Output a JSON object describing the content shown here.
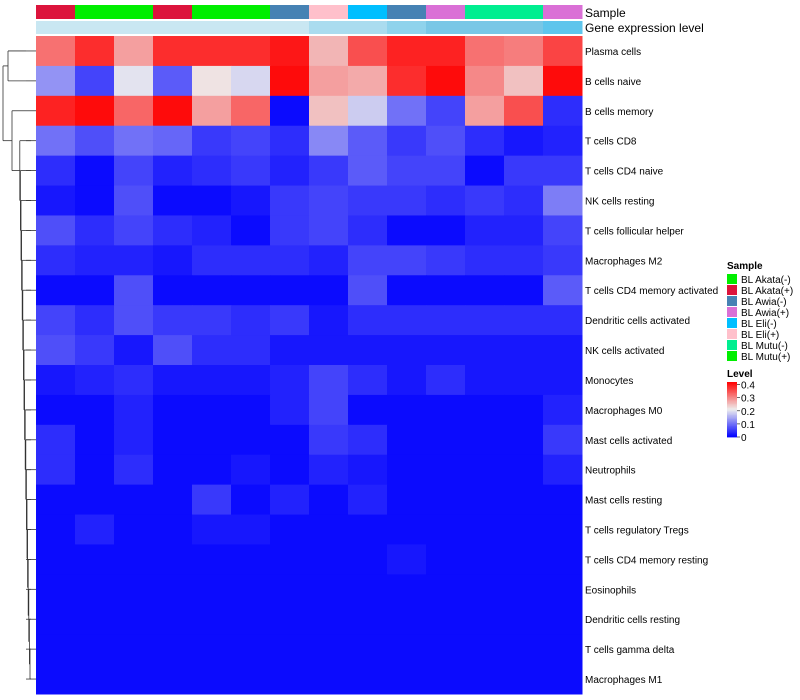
{
  "chart_data": {
    "type": "heatmap",
    "annotation_labels": [
      "Sample",
      "Gene expression level"
    ],
    "samples": [
      "BL Akata(+)",
      "BL Mutu(+)",
      "BL Mutu(+)",
      "BL Akata(+)",
      "BL Mutu(+)",
      "BL Mutu(+)",
      "BL Awia(-)",
      "BL Eli(+)",
      "BL Eli(-)",
      "BL Awia(-)",
      "BL Awia(+)",
      "BL Mutu(-)",
      "BL Mutu(-)",
      "BL Awia(+)"
    ],
    "expression_level": [
      "#c9e7f2",
      "#c9e7f2",
      "#c9e7f2",
      "#c9e7f2",
      "#c9e7f2",
      "#c9e7f2",
      "#c9e7f2",
      "#aadcef",
      "#aadcef",
      "#8fd3ec",
      "#79c7e6",
      "#79c7e6",
      "#79c7e6",
      "#5ec5ec"
    ],
    "rows": [
      {
        "label": "Plasma cells",
        "values": [
          0.32,
          0.38,
          0.28,
          0.38,
          0.38,
          0.38,
          0.4,
          0.26,
          0.35,
          0.39,
          0.39,
          0.32,
          0.31,
          0.36
        ]
      },
      {
        "label": "B cells naive",
        "values": [
          0.13,
          0.06,
          0.2,
          0.08,
          0.22,
          0.19,
          0.41,
          0.28,
          0.27,
          0.38,
          0.41,
          0.3,
          0.25,
          0.41
        ]
      },
      {
        "label": "B cells memory",
        "values": [
          0.39,
          0.41,
          0.33,
          0.41,
          0.28,
          0.33,
          0.01,
          0.25,
          0.18,
          0.1,
          0.06,
          0.28,
          0.35,
          0.04
        ]
      },
      {
        "label": "T cells CD8",
        "values": [
          0.1,
          0.07,
          0.1,
          0.09,
          0.05,
          0.06,
          0.04,
          0.12,
          0.08,
          0.05,
          0.07,
          0.04,
          0.02,
          0.03
        ]
      },
      {
        "label": "T cells CD4 naive",
        "values": [
          0.04,
          0.01,
          0.06,
          0.03,
          0.04,
          0.05,
          0.03,
          0.05,
          0.08,
          0.06,
          0.06,
          0.01,
          0.05,
          0.05
        ]
      },
      {
        "label": "NK cells resting",
        "values": [
          0.02,
          0.01,
          0.07,
          0.01,
          0.01,
          0.02,
          0.05,
          0.06,
          0.05,
          0.05,
          0.04,
          0.05,
          0.04,
          0.11
        ]
      },
      {
        "label": "T cells follicular helper",
        "values": [
          0.07,
          0.04,
          0.06,
          0.04,
          0.03,
          0.01,
          0.05,
          0.06,
          0.04,
          0.01,
          0.01,
          0.03,
          0.03,
          0.06
        ]
      },
      {
        "label": "Macrophages M2",
        "values": [
          0.04,
          0.03,
          0.03,
          0.02,
          0.04,
          0.04,
          0.04,
          0.03,
          0.06,
          0.06,
          0.05,
          0.04,
          0.04,
          0.05
        ]
      },
      {
        "label": "T cells CD4 memory activated",
        "values": [
          0.01,
          0.01,
          0.07,
          0.01,
          0.01,
          0.01,
          0.01,
          0.01,
          0.07,
          0.01,
          0.01,
          0.01,
          0.01,
          0.08
        ]
      },
      {
        "label": "Dendritic cells activated",
        "values": [
          0.06,
          0.04,
          0.07,
          0.05,
          0.05,
          0.04,
          0.05,
          0.02,
          0.04,
          0.04,
          0.04,
          0.04,
          0.04,
          0.04
        ]
      },
      {
        "label": "NK cells activated",
        "values": [
          0.07,
          0.05,
          0.02,
          0.07,
          0.04,
          0.04,
          0.02,
          0.02,
          0.02,
          0.02,
          0.02,
          0.02,
          0.02,
          0.02
        ]
      },
      {
        "label": "Monocytes",
        "values": [
          0.02,
          0.03,
          0.04,
          0.02,
          0.02,
          0.02,
          0.03,
          0.06,
          0.04,
          0.02,
          0.04,
          0.02,
          0.02,
          0.02
        ]
      },
      {
        "label": "Macrophages M0",
        "values": [
          0.01,
          0.01,
          0.03,
          0.01,
          0.01,
          0.01,
          0.03,
          0.06,
          0.01,
          0.01,
          0.01,
          0.01,
          0.01,
          0.03
        ]
      },
      {
        "label": "Mast cells activated",
        "values": [
          0.04,
          0.01,
          0.03,
          0.01,
          0.01,
          0.01,
          0.01,
          0.05,
          0.04,
          0.01,
          0.01,
          0.01,
          0.01,
          0.05
        ]
      },
      {
        "label": "Neutrophils",
        "values": [
          0.04,
          0.01,
          0.04,
          0.01,
          0.01,
          0.02,
          0.01,
          0.03,
          0.02,
          0.01,
          0.01,
          0.01,
          0.01,
          0.03
        ]
      },
      {
        "label": "Mast cells resting",
        "values": [
          0.01,
          0.01,
          0.01,
          0.01,
          0.05,
          0.01,
          0.03,
          0.01,
          0.03,
          0.01,
          0.01,
          0.01,
          0.01,
          0.01
        ]
      },
      {
        "label": "T cells regulatory  Tregs",
        "values": [
          0.01,
          0.03,
          0.01,
          0.01,
          0.02,
          0.02,
          0.01,
          0.01,
          0.01,
          0.01,
          0.01,
          0.01,
          0.01,
          0.01
        ]
      },
      {
        "label": "T cells CD4 memory resting",
        "values": [
          0.01,
          0.01,
          0.01,
          0.01,
          0.01,
          0.01,
          0.01,
          0.01,
          0.01,
          0.02,
          0.01,
          0.01,
          0.01,
          0.01
        ]
      },
      {
        "label": "Eosinophils",
        "values": [
          0.01,
          0.01,
          0.01,
          0.01,
          0.01,
          0.01,
          0.01,
          0.01,
          0.01,
          0.01,
          0.01,
          0.01,
          0.01,
          0.01
        ]
      },
      {
        "label": "Dendritic cells resting",
        "values": [
          0.01,
          0.01,
          0.01,
          0.01,
          0.01,
          0.01,
          0.01,
          0.01,
          0.01,
          0.01,
          0.01,
          0.01,
          0.01,
          0.01
        ]
      },
      {
        "label": "T cells gamma delta",
        "values": [
          0.01,
          0.01,
          0.01,
          0.01,
          0.01,
          0.01,
          0.01,
          0.01,
          0.01,
          0.01,
          0.01,
          0.01,
          0.01,
          0.01
        ]
      },
      {
        "label": "Macrophages M1",
        "values": [
          0.01,
          0.01,
          0.01,
          0.01,
          0.01,
          0.01,
          0.01,
          0.01,
          0.01,
          0.01,
          0.01,
          0.01,
          0.01,
          0.01
        ]
      }
    ],
    "legend_sample": {
      "title": "Sample",
      "entries": [
        {
          "label": "BL Akata(-)",
          "color": "#00ee00"
        },
        {
          "label": "BL Akata(+)",
          "color": "#dc143c"
        },
        {
          "label": "BL Awia(-)",
          "color": "#4682b4"
        },
        {
          "label": "BL Awia(+)",
          "color": "#da70d6"
        },
        {
          "label": "BL Eli(-)",
          "color": "#00bfff"
        },
        {
          "label": "BL Eli(+)",
          "color": "#ffc0cb"
        },
        {
          "label": "BL Mutu(-)",
          "color": "#00ee90"
        },
        {
          "label": "BL Mutu(+)",
          "color": "#00ee00"
        }
      ]
    },
    "legend_level": {
      "title": "Level",
      "ticks": [
        0.4,
        0.3,
        0.2,
        0.1,
        0
      ],
      "tick_labels": [
        "0.4",
        "0.3",
        "0.2",
        "0.1",
        "0"
      ],
      "range": [
        0,
        0.42
      ]
    },
    "colors": {
      "low": "#0000ff",
      "mid": "#eeeeee",
      "high": "#ff0000"
    }
  }
}
